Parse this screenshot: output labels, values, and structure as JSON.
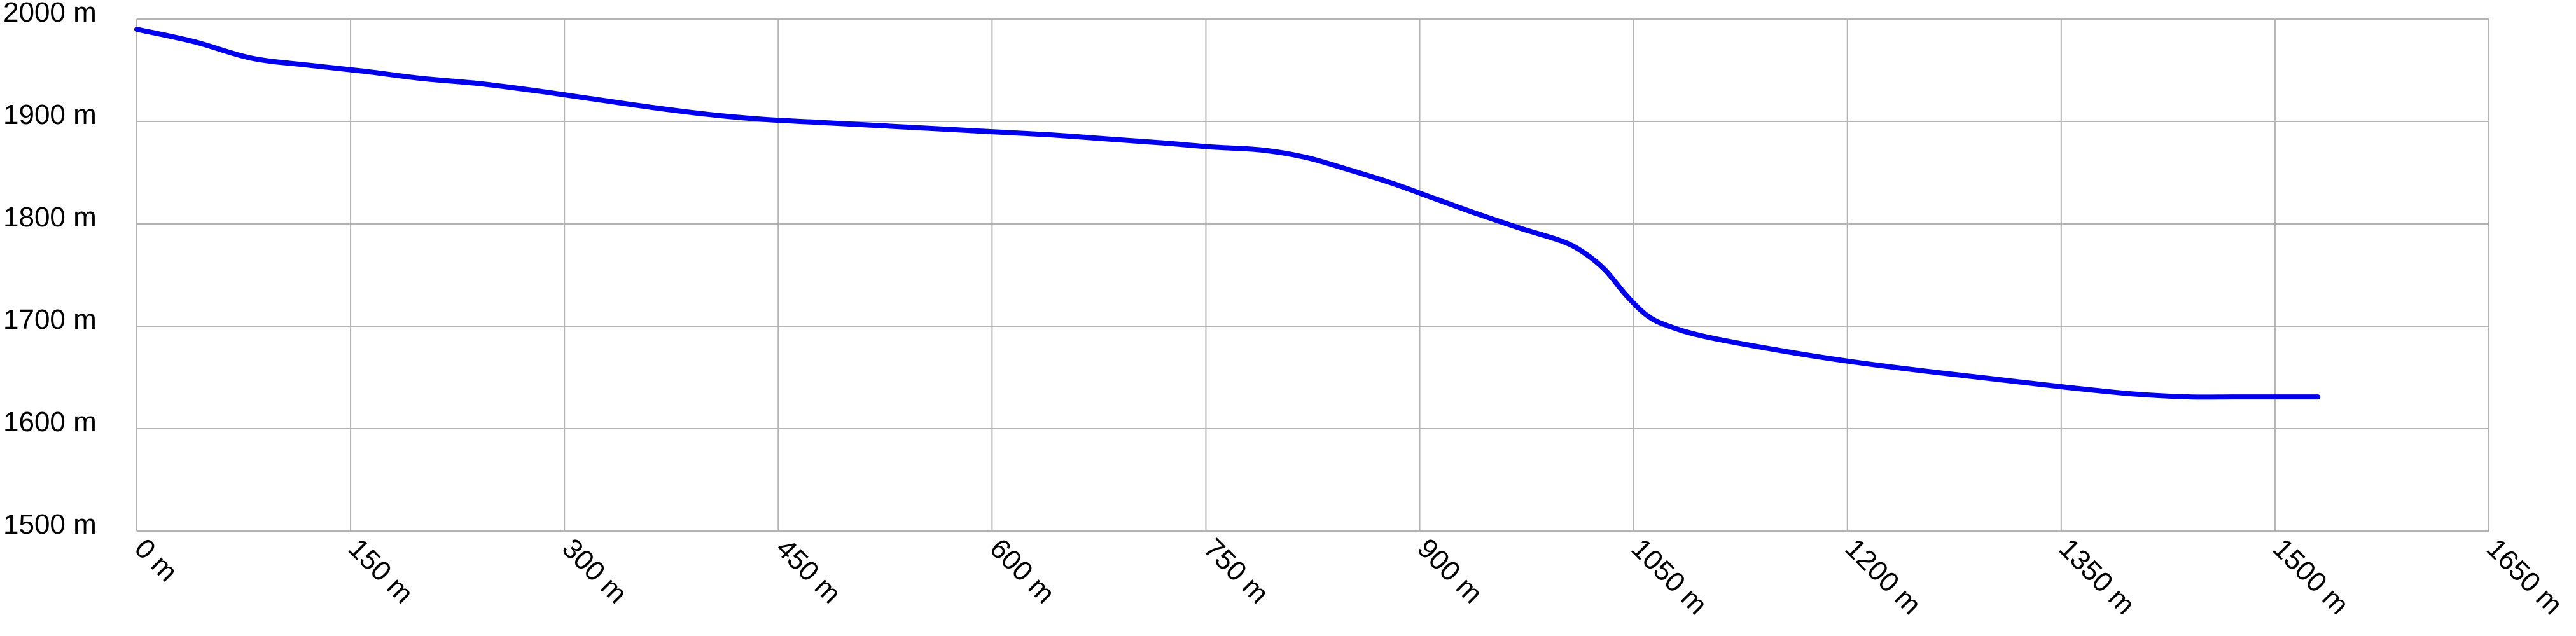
{
  "chart_data": {
    "type": "line",
    "title": "",
    "xlabel": "",
    "ylabel": "",
    "xlim": [
      0,
      1650
    ],
    "ylim": [
      1500,
      2000
    ],
    "x_ticks": [
      0,
      150,
      300,
      450,
      600,
      750,
      900,
      1050,
      1200,
      1350,
      1500,
      1650
    ],
    "x_tick_labels": [
      "0 m",
      "150 m",
      "300 m",
      "450 m",
      "600 m",
      "750 m",
      "900 m",
      "1050 m",
      "1200 m",
      "1350 m",
      "1500 m",
      "1650 m"
    ],
    "y_ticks": [
      1500,
      1600,
      1700,
      1800,
      1900,
      2000
    ],
    "y_tick_labels": [
      "1500 m",
      "1600 m",
      "1700 m",
      "1800 m",
      "1900 m",
      "2000 m"
    ],
    "grid": true,
    "line_color": "#0000ee",
    "series": [
      {
        "x": [
          0,
          40,
          80,
          120,
          160,
          200,
          240,
          280,
          320,
          360,
          400,
          440,
          480,
          520,
          560,
          600,
          640,
          680,
          720,
          755,
          790,
          820,
          850,
          880,
          910,
          940,
          970,
          1000,
          1015,
          1030,
          1045,
          1060,
          1075,
          1100,
          1150,
          1200,
          1250,
          1300,
          1350,
          1400,
          1440,
          1470,
          1500,
          1530
        ],
        "y": [
          1990,
          1978,
          1962,
          1955,
          1949,
          1942,
          1937,
          1930,
          1922,
          1914,
          1907,
          1902,
          1899,
          1896,
          1893,
          1890,
          1887,
          1883,
          1879,
          1875,
          1872,
          1865,
          1853,
          1840,
          1825,
          1810,
          1796,
          1783,
          1772,
          1755,
          1730,
          1710,
          1700,
          1690,
          1677,
          1666,
          1657,
          1649,
          1641,
          1634,
          1631,
          1631,
          1631,
          1631
        ]
      }
    ]
  }
}
